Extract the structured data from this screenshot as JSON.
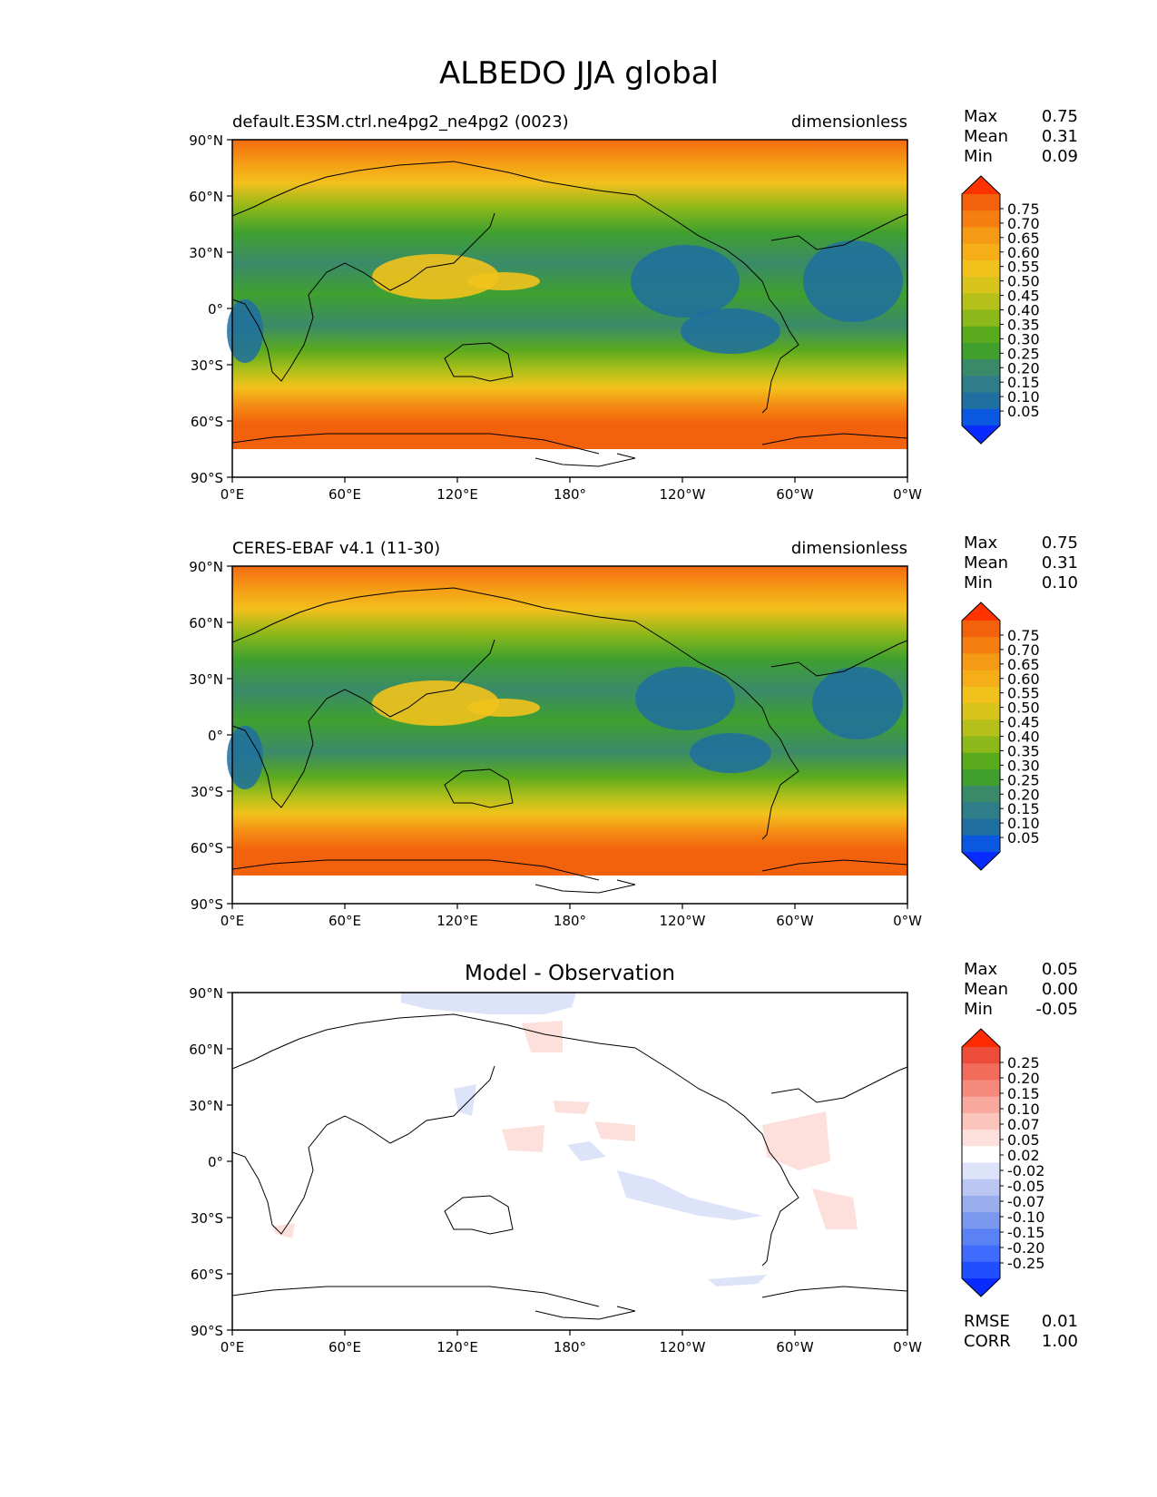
{
  "figure": {
    "title": "ALBEDO JJA global"
  },
  "axes": {
    "lat_labels": [
      "90°N",
      "60°N",
      "30°N",
      "0°",
      "30°S",
      "60°S",
      "90°S"
    ],
    "lon_labels": [
      "0°E",
      "60°E",
      "120°E",
      "180°",
      "120°W",
      "60°W",
      "0°W"
    ]
  },
  "panels": [
    {
      "id": "test",
      "left_title": "default.E3SM.ctrl.ne4pg2_ne4pg2 (0023)",
      "center_title": "",
      "right_title": "dimensionless",
      "stats": [
        {
          "label": "Max",
          "value": "0.75"
        },
        {
          "label": "Mean",
          "value": "0.31"
        },
        {
          "label": "Min",
          "value": "0.09"
        }
      ],
      "colorbar_labels": [
        "0.75",
        "0.70",
        "0.65",
        "0.60",
        "0.55",
        "0.50",
        "0.45",
        "0.40",
        "0.35",
        "0.30",
        "0.25",
        "0.20",
        "0.15",
        "0.10",
        "0.05"
      ]
    },
    {
      "id": "reference",
      "left_title": "CERES-EBAF v4.1 (11-30)",
      "center_title": "",
      "right_title": "dimensionless",
      "stats": [
        {
          "label": "Max",
          "value": "0.75"
        },
        {
          "label": "Mean",
          "value": "0.31"
        },
        {
          "label": "Min",
          "value": "0.10"
        }
      ],
      "colorbar_labels": [
        "0.75",
        "0.70",
        "0.65",
        "0.60",
        "0.55",
        "0.50",
        "0.45",
        "0.40",
        "0.35",
        "0.30",
        "0.25",
        "0.20",
        "0.15",
        "0.10",
        "0.05"
      ]
    },
    {
      "id": "difference",
      "left_title": "",
      "center_title": "Model - Observation",
      "right_title": "",
      "stats": [
        {
          "label": "Max",
          "value": "0.05"
        },
        {
          "label": "Mean",
          "value": "0.00"
        },
        {
          "label": "Min",
          "value": "-0.05"
        }
      ],
      "colorbar_labels": [
        "0.25",
        "0.20",
        "0.15",
        "0.10",
        "0.07",
        "0.05",
        "0.02",
        "-0.02",
        "-0.05",
        "-0.07",
        "-0.10",
        "-0.15",
        "-0.20",
        "-0.25"
      ],
      "extra_stats": [
        {
          "label": "RMSE",
          "value": "0.01"
        },
        {
          "label": "CORR",
          "value": "1.00"
        }
      ]
    }
  ],
  "colors": {
    "albedo_scale": [
      "#0a2bff",
      "#0a57e0",
      "#1f6fa0",
      "#2f7d88",
      "#3a8a6a",
      "#3fa02e",
      "#5aaa1e",
      "#8cb81a",
      "#b5c11a",
      "#d8c41a",
      "#f2c21c",
      "#f5ad18",
      "#f59a14",
      "#f57e10",
      "#f2620c",
      "#ff3300"
    ],
    "diff_scale": [
      "#0a2bff",
      "#1f4fff",
      "#3f6cff",
      "#5a82f5",
      "#7a98ee",
      "#9aaeee",
      "#bcc6f2",
      "#dde3f8",
      "#ffffff",
      "#fde0dc",
      "#fbc5bc",
      "#f8a89c",
      "#f58a7c",
      "#f26c5c",
      "#ee4c3a",
      "#ff2a00"
    ],
    "coast": "#000000"
  },
  "chart_data": [
    {
      "type": "heatmap",
      "title": "ALBEDO JJA global",
      "subtitle": "default.E3SM.ctrl.ne4pg2_ne4pg2 (0023)",
      "units": "dimensionless",
      "xlim": [
        0,
        360
      ],
      "ylim": [
        -90,
        90
      ],
      "x": [
        "0°E",
        "60°E",
        "120°E",
        "180°",
        "120°W",
        "60°W",
        "0°W"
      ],
      "y": [
        "90°N",
        "60°N",
        "30°N",
        "0°",
        "30°S",
        "60°S",
        "90°S"
      ],
      "levels": [
        0.05,
        0.1,
        0.15,
        0.2,
        0.25,
        0.3,
        0.35,
        0.4,
        0.45,
        0.5,
        0.55,
        0.6,
        0.65,
        0.7,
        0.75
      ],
      "stats": {
        "Max": 0.75,
        "Mean": 0.31,
        "Min": 0.09
      }
    },
    {
      "type": "heatmap",
      "title": "ALBEDO JJA global",
      "subtitle": "CERES-EBAF v4.1 (11-30)",
      "units": "dimensionless",
      "xlim": [
        0,
        360
      ],
      "ylim": [
        -90,
        90
      ],
      "x": [
        "0°E",
        "60°E",
        "120°E",
        "180°",
        "120°W",
        "60°W",
        "0°W"
      ],
      "y": [
        "90°N",
        "60°N",
        "30°N",
        "0°",
        "30°S",
        "60°S",
        "90°S"
      ],
      "levels": [
        0.05,
        0.1,
        0.15,
        0.2,
        0.25,
        0.3,
        0.35,
        0.4,
        0.45,
        0.5,
        0.55,
        0.6,
        0.65,
        0.7,
        0.75
      ],
      "stats": {
        "Max": 0.75,
        "Mean": 0.31,
        "Min": 0.1
      }
    },
    {
      "type": "heatmap",
      "title": "Model - Observation",
      "units": "",
      "xlim": [
        0,
        360
      ],
      "ylim": [
        -90,
        90
      ],
      "x": [
        "0°E",
        "60°E",
        "120°E",
        "180°",
        "120°W",
        "60°W",
        "0°W"
      ],
      "y": [
        "90°N",
        "60°N",
        "30°N",
        "0°",
        "30°S",
        "60°S",
        "90°S"
      ],
      "levels": [
        -0.25,
        -0.2,
        -0.15,
        -0.1,
        -0.07,
        -0.05,
        -0.02,
        0.02,
        0.05,
        0.07,
        0.1,
        0.15,
        0.2,
        0.25
      ],
      "stats": {
        "Max": 0.05,
        "Mean": 0.0,
        "Min": -0.05,
        "RMSE": 0.01,
        "CORR": 1.0
      }
    }
  ]
}
